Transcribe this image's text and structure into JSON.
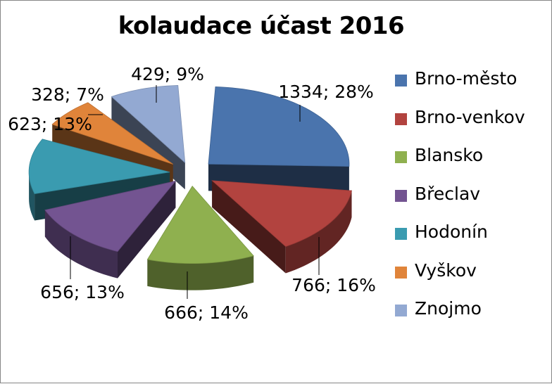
{
  "chart_data": {
    "type": "pie",
    "title": "kolaudace účast 2016",
    "slices": [
      {
        "name": "Brno-město",
        "value": 1334,
        "percent": 28,
        "label": "1334; 28%",
        "color": "#4a74ad"
      },
      {
        "name": "Brno-venkov",
        "value": 766,
        "percent": 16,
        "label": "766; 16%",
        "color": "#b2433f"
      },
      {
        "name": "Blansko",
        "value": 666,
        "percent": 14,
        "label": "666; 14%",
        "color": "#8fb04f"
      },
      {
        "name": "Břeclav",
        "value": 656,
        "percent": 13,
        "label": "656; 13%",
        "color": "#735491"
      },
      {
        "name": "Hodonín",
        "value": 623,
        "percent": 13,
        "label": "623; 13%",
        "color": "#3a9bb0"
      },
      {
        "name": "Vyškov",
        "value": 328,
        "percent": 7,
        "label": "328; 7%",
        "color": "#e0843a"
      },
      {
        "name": "Znojmo",
        "value": 429,
        "percent": 9,
        "label": "429; 9%",
        "color": "#93a9d2"
      }
    ],
    "legend_position": "right",
    "style": "3d-exploded-pie"
  }
}
